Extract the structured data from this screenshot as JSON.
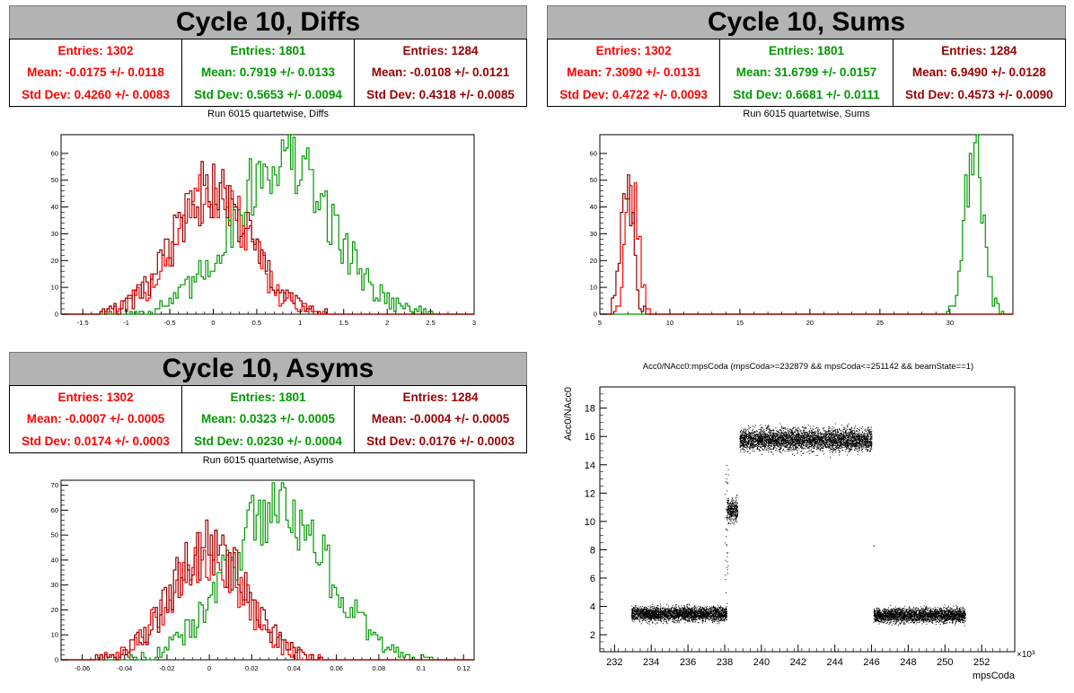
{
  "panels": [
    {
      "title": "Cycle 10, Diffs",
      "subtitle": "Run 6015 quartetwise, Diffs",
      "stats": [
        {
          "color": "#ff0000",
          "entries": "Entries: 1302",
          "mean": "Mean: -0.0175 +/- 0.0118",
          "std": "Std Dev: 0.4260 +/- 0.0083"
        },
        {
          "color": "#009900",
          "entries": "Entries: 1801",
          "mean": "Mean: 0.7919 +/- 0.0133",
          "std": "Std Dev: 0.5653 +/- 0.0094"
        },
        {
          "color": "#990000",
          "entries": "Entries: 1284",
          "mean": "Mean: -0.0108 +/- 0.0121",
          "std": "Std Dev: 0.4318 +/- 0.0085"
        }
      ]
    },
    {
      "title": "Cycle 10, Sums",
      "subtitle": "Run 6015 quartetwise, Sums",
      "stats": [
        {
          "color": "#ff0000",
          "entries": "Entries: 1302",
          "mean": "Mean: 7.3090 +/- 0.0131",
          "std": "Std Dev: 0.4722 +/- 0.0093"
        },
        {
          "color": "#009900",
          "entries": "Entries: 1801",
          "mean": "Mean: 31.6799 +/- 0.0157",
          "std": "Std Dev: 0.6681 +/- 0.0111"
        },
        {
          "color": "#990000",
          "entries": "Entries: 1284",
          "mean": "Mean: 6.9490 +/- 0.0128",
          "std": "Std Dev: 0.4573 +/- 0.0090"
        }
      ]
    },
    {
      "title": "Cycle 10, Asyms",
      "subtitle": "Run 6015 quartetwise, Asyms",
      "stats": [
        {
          "color": "#ff0000",
          "entries": "Entries: 1302",
          "mean": "Mean: -0.0007 +/- 0.0005",
          "std": "Std Dev: 0.0174 +/- 0.0003"
        },
        {
          "color": "#009900",
          "entries": "Entries: 1801",
          "mean": "Mean: 0.0323 +/- 0.0005",
          "std": "Std Dev: 0.0230 +/- 0.0004"
        },
        {
          "color": "#990000",
          "entries": "Entries: 1284",
          "mean": "Mean: -0.0004 +/- 0.0005",
          "std": "Std Dev: 0.0176 +/- 0.0003"
        }
      ]
    }
  ],
  "scatter_title": "Acc0/NAcc0:mpsCoda (mpsCoda>=232879 && mpsCoda<=251142 && beamState==1)",
  "chart_data": [
    {
      "type": "bar",
      "histogram": true,
      "xlim": [
        -1.75,
        3.0
      ],
      "ylim": [
        0,
        67
      ],
      "xticks": [
        -1.5,
        -1,
        -0.5,
        0,
        0.5,
        1,
        1.5,
        2,
        2.5,
        3
      ],
      "xtick_labels": [
        "-1.5",
        "-1",
        "-0.5",
        "0",
        "0.5",
        "1",
        "1.5",
        "2",
        "2.5",
        "3"
      ],
      "yticks": [
        0,
        10,
        20,
        30,
        40,
        50,
        60
      ],
      "ytick_labels": [
        "0",
        "10",
        "20",
        "30",
        "40",
        "50",
        "60"
      ],
      "series": [
        {
          "color": "#ff0000",
          "mean": -0.0175,
          "std": 0.426,
          "peak": 50
        },
        {
          "color": "#009900",
          "mean": 0.7919,
          "std": 0.5653,
          "peak": 64
        },
        {
          "color": "#990000",
          "mean": -0.0108,
          "std": 0.4318,
          "peak": 52
        }
      ]
    },
    {
      "type": "bar",
      "histogram": true,
      "xlim": [
        5,
        34.5
      ],
      "ylim": [
        0,
        67
      ],
      "xticks": [
        5,
        10,
        15,
        20,
        25,
        30
      ],
      "xtick_labels": [
        "5",
        "10",
        "15",
        "20",
        "25",
        "30"
      ],
      "yticks": [
        0,
        10,
        20,
        30,
        40,
        50,
        60
      ],
      "ytick_labels": [
        "0",
        "10",
        "20",
        "30",
        "40",
        "50",
        "60"
      ],
      "series": [
        {
          "color": "#ff0000",
          "mean": 7.309,
          "std": 0.4722,
          "peak": 48
        },
        {
          "color": "#009900",
          "mean": 31.6799,
          "std": 0.6681,
          "peak": 66
        },
        {
          "color": "#990000",
          "mean": 6.949,
          "std": 0.4573,
          "peak": 54
        }
      ]
    },
    {
      "type": "bar",
      "histogram": true,
      "xlim": [
        -0.07,
        0.125
      ],
      "ylim": [
        0,
        72
      ],
      "xticks": [
        -0.06,
        -0.04,
        -0.02,
        0,
        0.02,
        0.04,
        0.06,
        0.08,
        0.1,
        0.12
      ],
      "xtick_labels": [
        "-0.06",
        "-0.04",
        "-0.02",
        "0",
        "0.02",
        "0.04",
        "0.06",
        "0.08",
        "0.1",
        "0.12"
      ],
      "yticks": [
        0,
        10,
        20,
        30,
        40,
        50,
        60,
        70
      ],
      "ytick_labels": [
        "0",
        "10",
        "20",
        "30",
        "40",
        "50",
        "60",
        "70"
      ],
      "series": [
        {
          "color": "#ff0000",
          "mean": -0.0007,
          "std": 0.0174,
          "peak": 48
        },
        {
          "color": "#009900",
          "mean": 0.0323,
          "std": 0.023,
          "peak": 69
        },
        {
          "color": "#990000",
          "mean": -0.0004,
          "std": 0.0176,
          "peak": 50
        }
      ]
    },
    {
      "type": "scatter",
      "xlabel": "mpsCoda",
      "ylabel": "Acc0/NAcc0",
      "x_multiplier_label": "×10³",
      "xlim": [
        231.2,
        253.8
      ],
      "ylim": [
        0.8,
        19.5
      ],
      "xticks": [
        232,
        234,
        236,
        238,
        240,
        242,
        244,
        246,
        248,
        250,
        252
      ],
      "xtick_labels": [
        "232",
        "234",
        "236",
        "238",
        "240",
        "242",
        "244",
        "246",
        "248",
        "250",
        "252"
      ],
      "yticks": [
        2,
        4,
        6,
        8,
        10,
        12,
        14,
        16,
        18
      ],
      "ytick_labels": [
        "2",
        "4",
        "6",
        "8",
        "10",
        "12",
        "14",
        "16",
        "18"
      ],
      "clusters": [
        {
          "x_range": [
            232.9,
            238.1
          ],
          "y_center": 3.5,
          "y_spread": 0.35
        },
        {
          "x_range": [
            238.1,
            238.7
          ],
          "y_center": 10.8,
          "y_spread": 0.6
        },
        {
          "x_range": [
            238.8,
            246.0
          ],
          "y_center": 15.8,
          "y_spread": 0.55
        },
        {
          "x_range": [
            246.1,
            251.1
          ],
          "y_center": 3.4,
          "y_spread": 0.35
        }
      ]
    }
  ]
}
